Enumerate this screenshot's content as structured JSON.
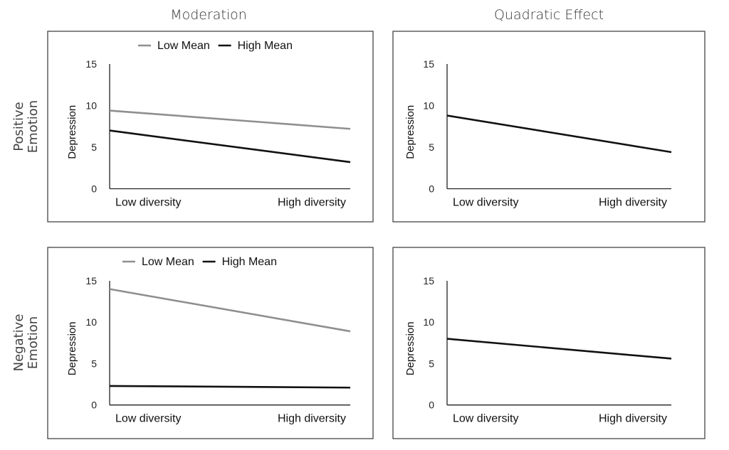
{
  "column_titles": [
    "Moderation",
    "Quadratic Effect"
  ],
  "row_titles": [
    [
      "Positive",
      "Emotion"
    ],
    [
      "Negative",
      "Emotion"
    ]
  ],
  "colors": {
    "low_mean": "#8f8f8f",
    "high_mean": "#111111",
    "single": "#111111",
    "frame": "#444444"
  },
  "chart_data": [
    {
      "type": "line",
      "panel": "positive-moderation",
      "categories": [
        "Low diversity",
        "High diversity"
      ],
      "ylabel": "Depression",
      "ylim": [
        0,
        15
      ],
      "yticks": [
        0,
        5,
        10,
        15
      ],
      "grid": false,
      "legend": "top",
      "series": [
        {
          "name": "Low Mean",
          "values": [
            9.4,
            7.2
          ],
          "color": "#8f8f8f"
        },
        {
          "name": "High Mean",
          "values": [
            7.0,
            3.2
          ],
          "color": "#111111"
        }
      ]
    },
    {
      "type": "line",
      "panel": "positive-quadratic",
      "categories": [
        "Low diversity",
        "High diversity"
      ],
      "ylabel": "Depression",
      "ylim": [
        0,
        15
      ],
      "yticks": [
        0,
        5,
        10,
        15
      ],
      "grid": false,
      "series": [
        {
          "values": [
            8.8,
            4.4
          ],
          "color": "#111111"
        }
      ]
    },
    {
      "type": "line",
      "panel": "negative-moderation",
      "categories": [
        "Low diversity",
        "High diversity"
      ],
      "ylabel": "Depression",
      "ylim": [
        0,
        15
      ],
      "yticks": [
        0,
        5,
        10,
        15
      ],
      "grid": false,
      "legend": "top",
      "series": [
        {
          "name": "Low Mean",
          "values": [
            14.0,
            8.9
          ],
          "color": "#8f8f8f"
        },
        {
          "name": "High Mean",
          "values": [
            2.3,
            2.1
          ],
          "color": "#111111"
        }
      ]
    },
    {
      "type": "line",
      "panel": "negative-quadratic",
      "categories": [
        "Low diversity",
        "High diversity"
      ],
      "ylabel": "Depression",
      "ylim": [
        0,
        15
      ],
      "yticks": [
        0,
        5,
        10,
        15
      ],
      "grid": false,
      "series": [
        {
          "values": [
            8.0,
            5.6
          ],
          "color": "#111111"
        }
      ]
    }
  ]
}
